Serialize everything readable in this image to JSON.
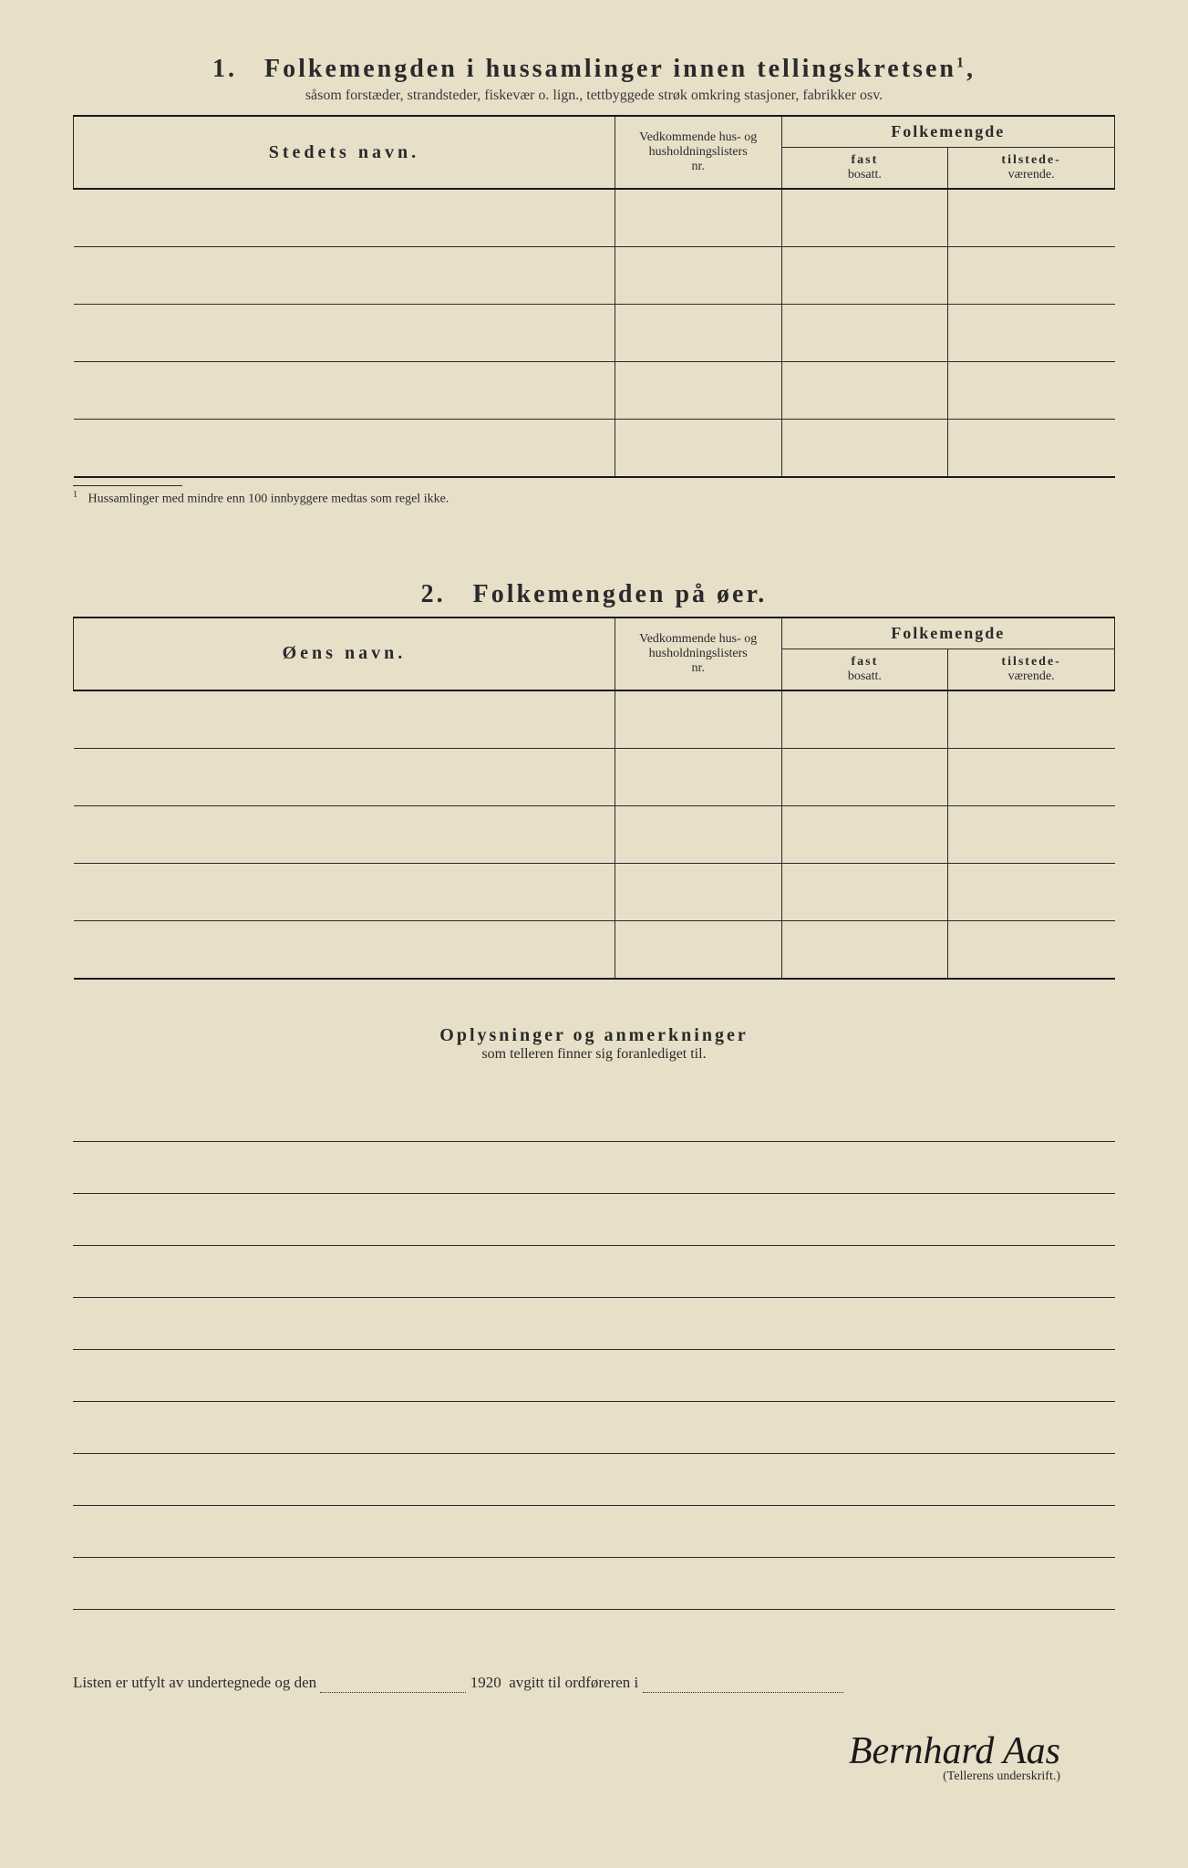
{
  "section1": {
    "number": "1.",
    "title": "Folkemengden i hussamlinger innen tellingskretsen",
    "title_sup": "1",
    "subtitle": "såsom forstæder, strandsteder, fiskevær o. lign., tettbyggede strøk omkring stasjoner, fabrikker osv.",
    "headers": {
      "name": "Stedets navn.",
      "nr_line1": "Vedkommende hus- og",
      "nr_line2": "husholdningslisters",
      "nr_line3": "nr.",
      "folkemengde": "Folkemengde",
      "fast_bold": "fast",
      "fast_sub": "bosatt.",
      "til_bold": "tilstede-",
      "til_sub": "værende."
    },
    "row_count": 5,
    "footnote_sup": "1",
    "footnote": "Hussamlinger med mindre enn 100 innbyggere medtas som regel ikke."
  },
  "section2": {
    "number": "2.",
    "title": "Folkemengden på øer.",
    "headers": {
      "name": "Øens navn.",
      "nr_line1": "Vedkommende hus- og",
      "nr_line2": "husholdningslisters",
      "nr_line3": "nr.",
      "folkemengde": "Folkemengde",
      "fast_bold": "fast",
      "fast_sub": "bosatt.",
      "til_bold": "tilstede-",
      "til_sub": "værende."
    },
    "row_count": 5
  },
  "remarks": {
    "title": "Oplysninger og anmerkninger",
    "subtitle": "som telleren finner sig foranlediget til.",
    "line_count": 10
  },
  "footer": {
    "text_before": "Listen er utfylt av undertegnede og den",
    "year": "1920",
    "text_after": "avgitt til ordføreren i",
    "signature": "Bernhard Aas",
    "signature_label": "(Tellerens underskrift.)"
  },
  "colors": {
    "paper": "#e8dfc9",
    "ink": "#2a2a2a",
    "rule": "#1a1a1a",
    "page_bg": "#3a3a3a"
  }
}
